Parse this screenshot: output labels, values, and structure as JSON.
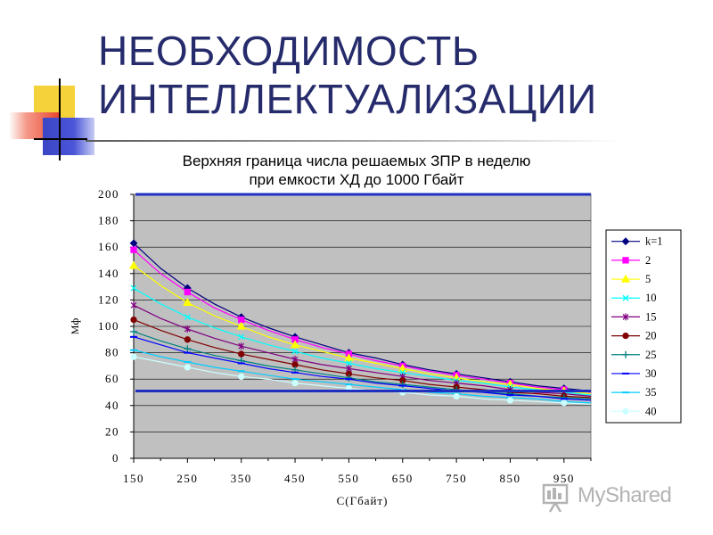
{
  "slide": {
    "title_line1": "НЕОБХОДИМОСТЬ",
    "title_line2": "ИНТЕЛЛЕКТУАЛИЗАЦИИ",
    "watermark": "MyShared"
  },
  "colors": {
    "title": "#262b6c",
    "plot_background": "#c0c0c0",
    "reference_lines": "#1f2fbf"
  },
  "chart_data": {
    "type": "line",
    "title_line1": "Верхняя граница числа решаемых ЗПР в неделю",
    "title_line2": "при емкости ХД до 1000 Гбайт",
    "xlabel": "C(Гбайт)",
    "ylabel": "Мф",
    "xlim": [
      150,
      1000
    ],
    "ylim": [
      0,
      200
    ],
    "x_ticks": [
      150,
      250,
      350,
      450,
      550,
      650,
      750,
      850,
      950
    ],
    "y_ticks": [
      0,
      20,
      40,
      60,
      80,
      100,
      120,
      140,
      160,
      180,
      200
    ],
    "grid": "horizontal",
    "legend_position": "right",
    "x": [
      150,
      200,
      250,
      300,
      350,
      400,
      450,
      500,
      550,
      600,
      650,
      700,
      750,
      800,
      850,
      900,
      950,
      1000
    ],
    "reference_lines": [
      200,
      51
    ],
    "series": [
      {
        "name": "k=1",
        "color": "#000080",
        "marker": "diamond",
        "values": [
          163,
          144,
          129,
          117,
          107,
          99,
          92,
          86,
          80,
          76,
          71,
          67,
          64,
          61,
          58,
          55,
          53,
          51
        ]
      },
      {
        "name": "2",
        "color": "#ff00ff",
        "marker": "square",
        "values": [
          158,
          140,
          126,
          114,
          105,
          97,
          90,
          84,
          79,
          74,
          70,
          66,
          63,
          60,
          57,
          54,
          52,
          50
        ]
      },
      {
        "name": "5",
        "color": "#ffff00",
        "marker": "triangle",
        "values": [
          146,
          131,
          118,
          108,
          100,
          92,
          86,
          81,
          76,
          72,
          68,
          64,
          61,
          58,
          56,
          53,
          51,
          49
        ]
      },
      {
        "name": "10",
        "color": "#00ffff",
        "marker": "x",
        "values": [
          129,
          117,
          107,
          99,
          92,
          86,
          81,
          76,
          72,
          68,
          65,
          62,
          59,
          57,
          54,
          52,
          50,
          48
        ]
      },
      {
        "name": "15",
        "color": "#800080",
        "marker": "star",
        "values": [
          116,
          106,
          98,
          91,
          85,
          80,
          75,
          71,
          68,
          65,
          62,
          59,
          57,
          55,
          52,
          50,
          49,
          47
        ]
      },
      {
        "name": "20",
        "color": "#800000",
        "marker": "circle",
        "values": [
          105,
          97,
          90,
          84,
          79,
          75,
          71,
          67,
          64,
          61,
          59,
          56,
          54,
          52,
          50,
          49,
          47,
          46
        ]
      },
      {
        "name": "25",
        "color": "#008080",
        "marker": "plus",
        "values": [
          96,
          89,
          83,
          78,
          74,
          70,
          67,
          64,
          61,
          58,
          56,
          54,
          52,
          50,
          49,
          47,
          46,
          45
        ]
      },
      {
        "name": "30",
        "color": "#0000ff",
        "marker": "dash",
        "values": [
          92,
          86,
          80,
          76,
          72,
          68,
          65,
          62,
          60,
          57,
          55,
          53,
          51,
          50,
          48,
          47,
          45,
          44
        ]
      },
      {
        "name": "35",
        "color": "#00ccff",
        "marker": "dash",
        "values": [
          82,
          77,
          73,
          69,
          66,
          63,
          60,
          58,
          56,
          54,
          52,
          50,
          49,
          47,
          46,
          45,
          43,
          42
        ]
      },
      {
        "name": "40",
        "color": "#ccffff",
        "marker": "circle",
        "values": [
          77,
          73,
          69,
          65,
          62,
          60,
          57,
          55,
          53,
          51,
          50,
          48,
          47,
          45,
          44,
          43,
          42,
          41
        ]
      }
    ]
  }
}
